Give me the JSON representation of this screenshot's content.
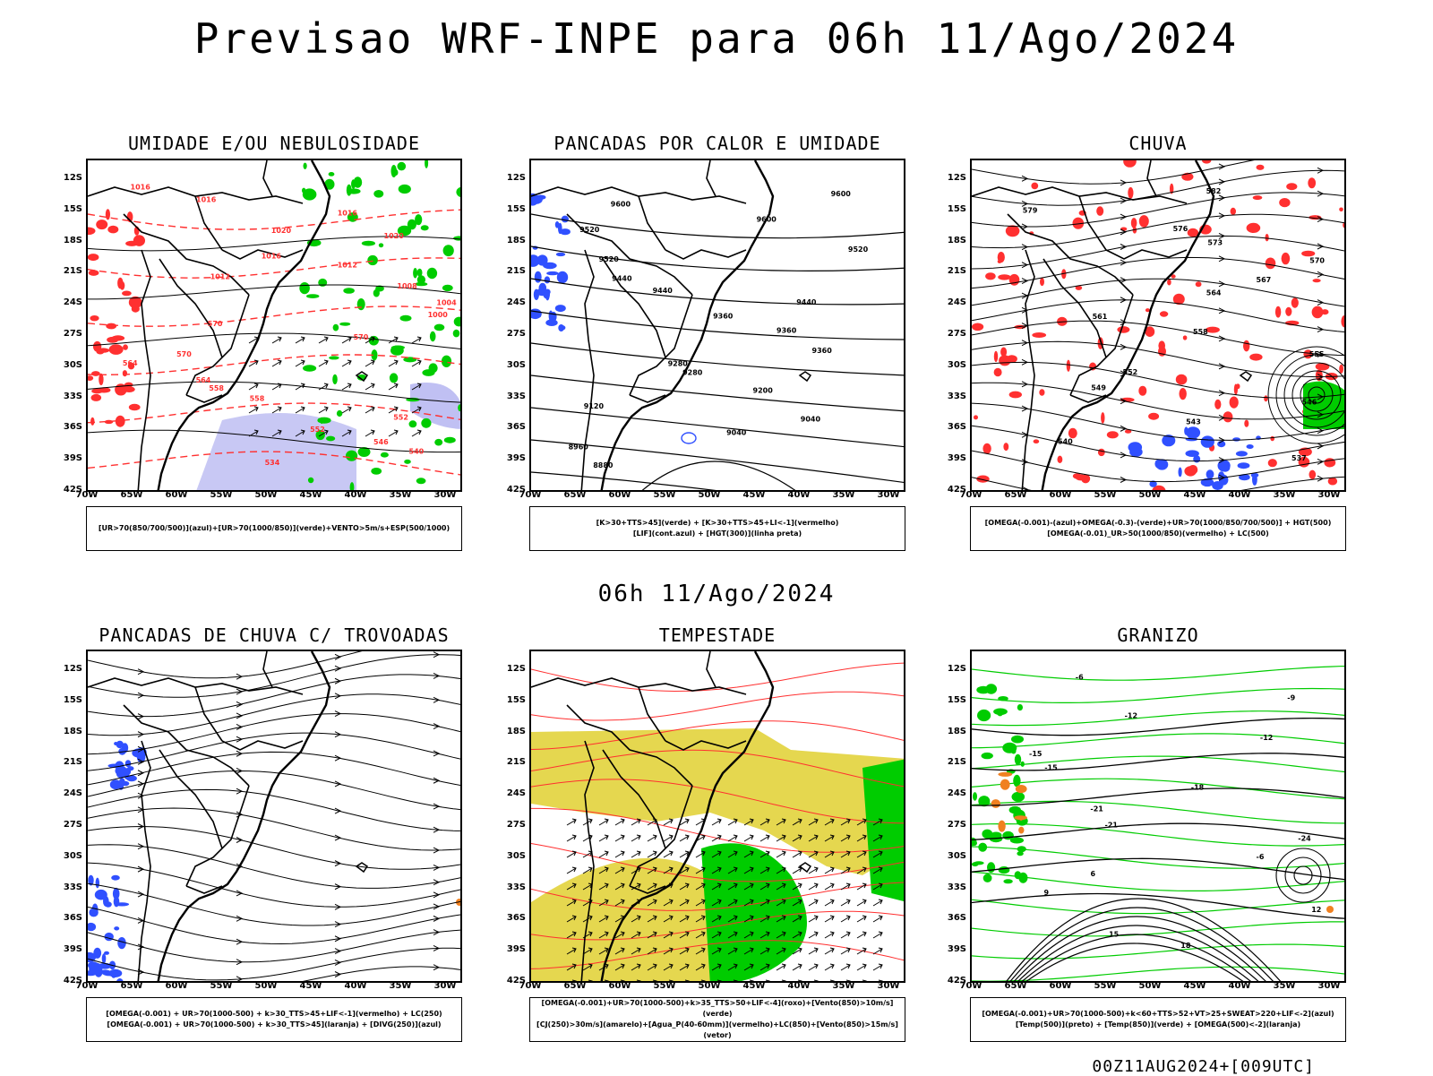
{
  "page": {
    "title": "Previsao WRF-INPE  para 06h 11/Ago/2024",
    "middle_title": "06h 11/Ago/2024",
    "footer": "00Z11AUG2024+[009UTC]"
  },
  "axes": {
    "lat_labels": [
      "12S",
      "15S",
      "18S",
      "21S",
      "24S",
      "27S",
      "30S",
      "33S",
      "36S",
      "39S",
      "42S"
    ],
    "lon_labels": [
      "70W",
      "65W",
      "60W",
      "55W",
      "50W",
      "45W",
      "40W",
      "35W",
      "30W"
    ]
  },
  "panels": [
    {
      "title": "UMIDADE E/OU NEBULOSIDADE",
      "legend": [
        "[UR>70(850/700/500)](azul)+[UR>70(1000/850)](verde)+VENTO>5m/s+ESP(500/1000)"
      ],
      "contour_labels": [
        "1016",
        "1016",
        "1016",
        "1020",
        "1020",
        "1016",
        "1012",
        "1012",
        "1008",
        "1004",
        "1000",
        "570",
        "570",
        "570",
        "564",
        "564",
        "558",
        "558",
        "552",
        "552",
        "546",
        "540",
        "534"
      ]
    },
    {
      "title": "PANCADAS POR CALOR E UMIDADE",
      "legend": [
        "[K>30+TTS>45](verde) + [K>30+TTS>45+LI<-1](vermelho)",
        "[LIF](cont.azul) + [HGT(300)](linha preta)"
      ],
      "contour_labels": [
        "9600",
        "9600",
        "9600",
        "9520",
        "9520",
        "9520",
        "9440",
        "9440",
        "9440",
        "9360",
        "9360",
        "9360",
        "9280",
        "9280",
        "9200",
        "9120",
        "9040",
        "9040",
        "8960",
        "8880"
      ]
    },
    {
      "title": "CHUVA",
      "legend": [
        "[OMEGA(-0.001)-(azul)+OMEGA(-0.3)-(verde)+UR>70(1000/850/700/500)] + HGT(500)",
        "[OMEGA(-0.01)_UR>50(1000/850)(vermelho) + LC(500)"
      ],
      "contour_labels": [
        "582",
        "579",
        "576",
        "573",
        "570",
        "567",
        "564",
        "561",
        "558",
        "555",
        "552",
        "549",
        "546",
        "543",
        "540",
        "537"
      ]
    },
    {
      "title": "PANCADAS DE CHUVA C/ TROVOADAS",
      "legend": [
        "[OMEGA(-0.001) + UR>70(1000-500) + k>30_TTS>45+LIF<-1](vermelho) + LC(250)",
        "[OMEGA(-0.001) + UR>70(1000-500) + k>30_TTS>45](laranja) + [DIVG(250)](azul)"
      ],
      "contour_labels": []
    },
    {
      "title": "TEMPESTADE",
      "legend": [
        "[OMEGA(-0.001)+UR>70(1000-500)+k>35_TTS>50+LIF<-4](roxo)+[Vento(850)>10m/s](verde)",
        "[CJ(250)>30m/s](amarelo)+[Agua_P(40-60mm)](vermelho)+LC(850)+[Vento(850)>15m/s](vetor)"
      ],
      "contour_labels": []
    },
    {
      "title": "GRANIZO",
      "legend": [
        "[OMEGA(-0.001)+UR>70(1000-500)+k<60+TTS>52+VT>25+SWEAT>220+LIF<-2](azul)",
        "[Temp(500)](preto) + [Temp(850)](verde) + [OMEGA(500)<-2](laranja)"
      ],
      "contour_labels": [
        "-6",
        "-9",
        "-12",
        "-12",
        "-15",
        "-15",
        "-18",
        "-21",
        "-21",
        "-24",
        "-6",
        "6",
        "9",
        "12",
        "15",
        "18"
      ]
    }
  ],
  "colors": {
    "frame": "#000000",
    "contour_red": "#ff3030",
    "humidity_green": "#00cc00",
    "humidity_blue": "#3050ff",
    "lavender": "#b0b0f0",
    "yellow": "#e0d030",
    "orange": "#f08020"
  }
}
